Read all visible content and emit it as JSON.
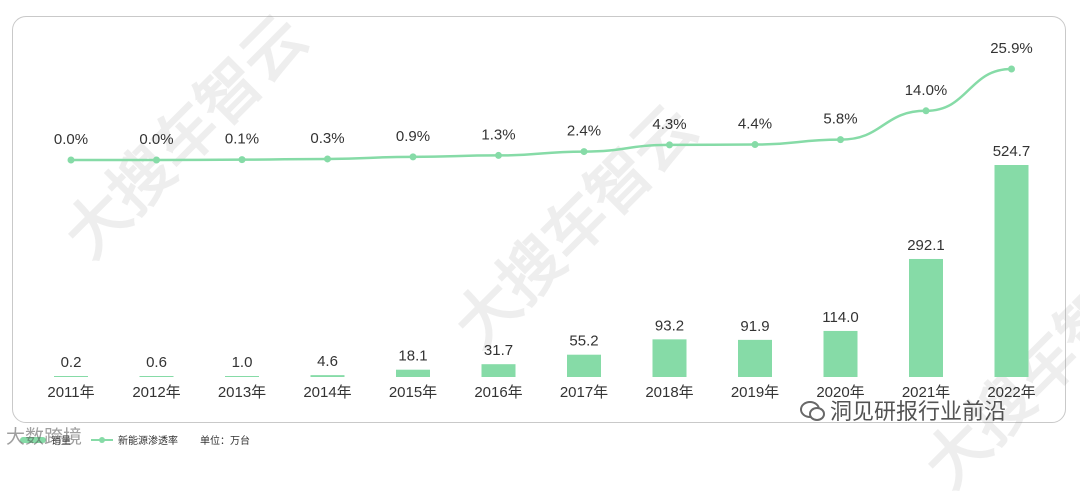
{
  "chart_data": {
    "type": "bar+line",
    "categories": [
      "2011年",
      "2012年",
      "2013年",
      "2014年",
      "2015年",
      "2016年",
      "2017年",
      "2018年",
      "2019年",
      "2020年",
      "2021年",
      "2022年"
    ],
    "series": [
      {
        "name": "销量",
        "type": "bar",
        "values": [
          0.2,
          0.6,
          1.0,
          4.6,
          18.1,
          31.7,
          55.2,
          93.2,
          91.9,
          114.0,
          292.1,
          524.7
        ],
        "labels": [
          "0.2",
          "0.6",
          "1.0",
          "4.6",
          "18.1",
          "31.7",
          "55.2",
          "93.2",
          "91.9",
          "114.0",
          "292.1",
          "524.7"
        ]
      },
      {
        "name": "新能源渗透率",
        "type": "line",
        "unit": "%",
        "values": [
          0.0,
          0.0,
          0.1,
          0.3,
          0.9,
          1.3,
          2.4,
          4.3,
          4.4,
          5.8,
          14.0,
          25.9
        ],
        "labels": [
          "0.0%",
          "0.0%",
          "0.1%",
          "0.3%",
          "0.9%",
          "1.3%",
          "2.4%",
          "4.3%",
          "4.4%",
          "5.8%",
          "14.0%",
          "25.9%"
        ]
      }
    ],
    "unit_label": "单位：万台",
    "legend_position": "bottom-left",
    "grid": false,
    "colors": {
      "bar": "#86dba7",
      "line": "#86dba7",
      "text": "#333333"
    }
  },
  "legend": {
    "bar_label": "销量",
    "line_label": "新能源渗透率",
    "unit": "单位：万台"
  },
  "watermarks": {
    "brand": "大搜车智云",
    "left_source": "大数跨境",
    "right_source": "洞见研报行业前沿"
  }
}
